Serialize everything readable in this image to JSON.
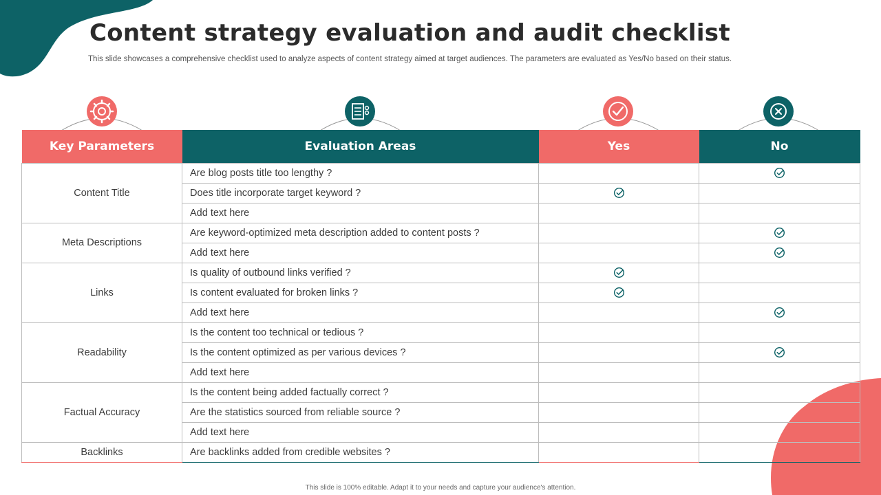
{
  "slide": {
    "title": "Content strategy evaluation and audit checklist",
    "subtitle": "This slide showcases a comprehensive checklist used to analyze aspects of content strategy aimed at target audiences. The parameters are evaluated as Yes/No based on their status.",
    "footer": "This slide is 100% editable.  Adapt it to your needs and capture your audience's attention."
  },
  "colors": {
    "coral": "#f06a68",
    "teal": "#0d6266"
  },
  "headers": {
    "key_parameters": "Key Parameters",
    "evaluation_areas": "Evaluation Areas",
    "yes": "Yes",
    "no": "No"
  },
  "header_icons": [
    "gear-icon",
    "checklist-icon",
    "checkmark-icon",
    "x-icon"
  ],
  "groups": [
    {
      "parameter": "Content Title",
      "rows": [
        {
          "area": "Are blog posts title too lengthy ?",
          "yes": false,
          "no": true
        },
        {
          "area": "Does title incorporate target keyword ?",
          "yes": true,
          "no": false
        },
        {
          "area": "Add text here",
          "yes": false,
          "no": false
        }
      ]
    },
    {
      "parameter": "Meta Descriptions",
      "rows": [
        {
          "area": "Are keyword-optimized meta description added to content posts ?",
          "yes": false,
          "no": true
        },
        {
          "area": "Add text here",
          "yes": false,
          "no": true
        }
      ]
    },
    {
      "parameter": "Links",
      "rows": [
        {
          "area": "Is quality of outbound links verified ?",
          "yes": true,
          "no": false
        },
        {
          "area": "Is content evaluated for broken links ?",
          "yes": true,
          "no": false
        },
        {
          "area": "Add text here",
          "yes": false,
          "no": true
        }
      ]
    },
    {
      "parameter": "Readability",
      "rows": [
        {
          "area": "Is the content too technical or tedious ?",
          "yes": false,
          "no": false
        },
        {
          "area": "Is the content optimized as per various devices ?",
          "yes": false,
          "no": true
        },
        {
          "area": "Add text here",
          "yes": false,
          "no": false
        }
      ]
    },
    {
      "parameter": "Factual Accuracy",
      "rows": [
        {
          "area": "Is the content being added factually correct ?",
          "yes": false,
          "no": false
        },
        {
          "area": "Are the statistics sourced from reliable source ?",
          "yes": false,
          "no": false
        },
        {
          "area": "Add text here",
          "yes": false,
          "no": false
        }
      ]
    },
    {
      "parameter": "Backlinks",
      "rows": [
        {
          "area": "Are backlinks added from credible websites ?",
          "yes": false,
          "no": false
        }
      ]
    }
  ]
}
